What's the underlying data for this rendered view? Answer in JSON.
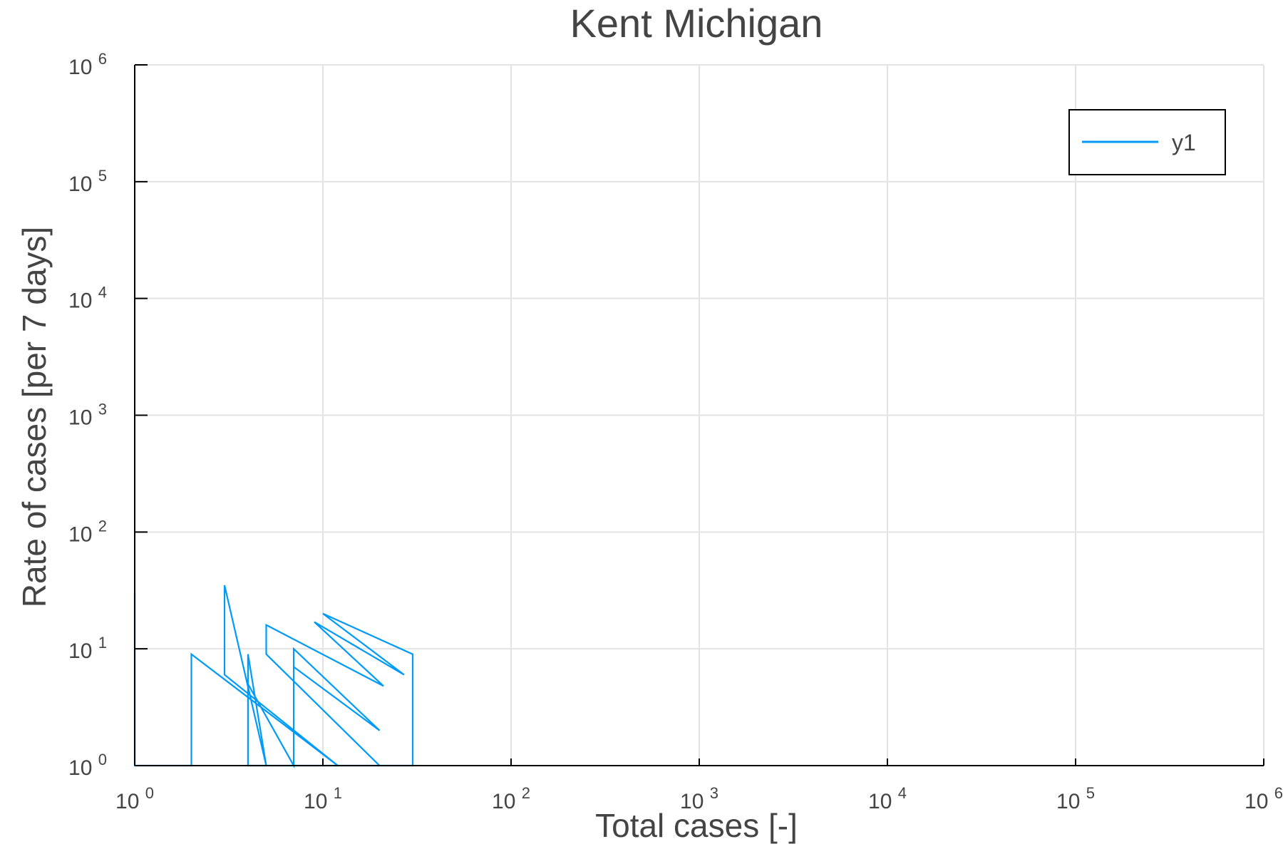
{
  "chart_data": {
    "type": "line",
    "title": "Kent Michigan",
    "xlabel": "Total cases [-]",
    "ylabel": "Rate of cases [per 7 days]",
    "xscale": "log",
    "yscale": "log",
    "xlim": [
      1,
      1000000
    ],
    "ylim": [
      1,
      1000000
    ],
    "grid": true,
    "legend_position": "top-right",
    "tick_base": "10",
    "x_tick_exponents": [
      "0",
      "1",
      "2",
      "3",
      "4",
      "5",
      "6"
    ],
    "y_tick_exponents": [
      "0",
      "1",
      "2",
      "3",
      "4",
      "5",
      "6"
    ],
    "series": [
      {
        "name": "y1",
        "color": "#009AF9",
        "x": [
          1,
          1,
          2,
          2,
          12,
          3,
          3,
          5,
          4,
          4,
          20,
          5,
          5,
          21,
          9,
          27,
          10,
          30,
          30,
          7,
          7,
          20,
          7,
          7,
          4
        ],
        "y": [
          30,
          1,
          1,
          9,
          1,
          6,
          35,
          1,
          9,
          1,
          1,
          9,
          16,
          4.8,
          17,
          6,
          20,
          9,
          1,
          1,
          10,
          2,
          7,
          1,
          5
        ]
      }
    ]
  }
}
